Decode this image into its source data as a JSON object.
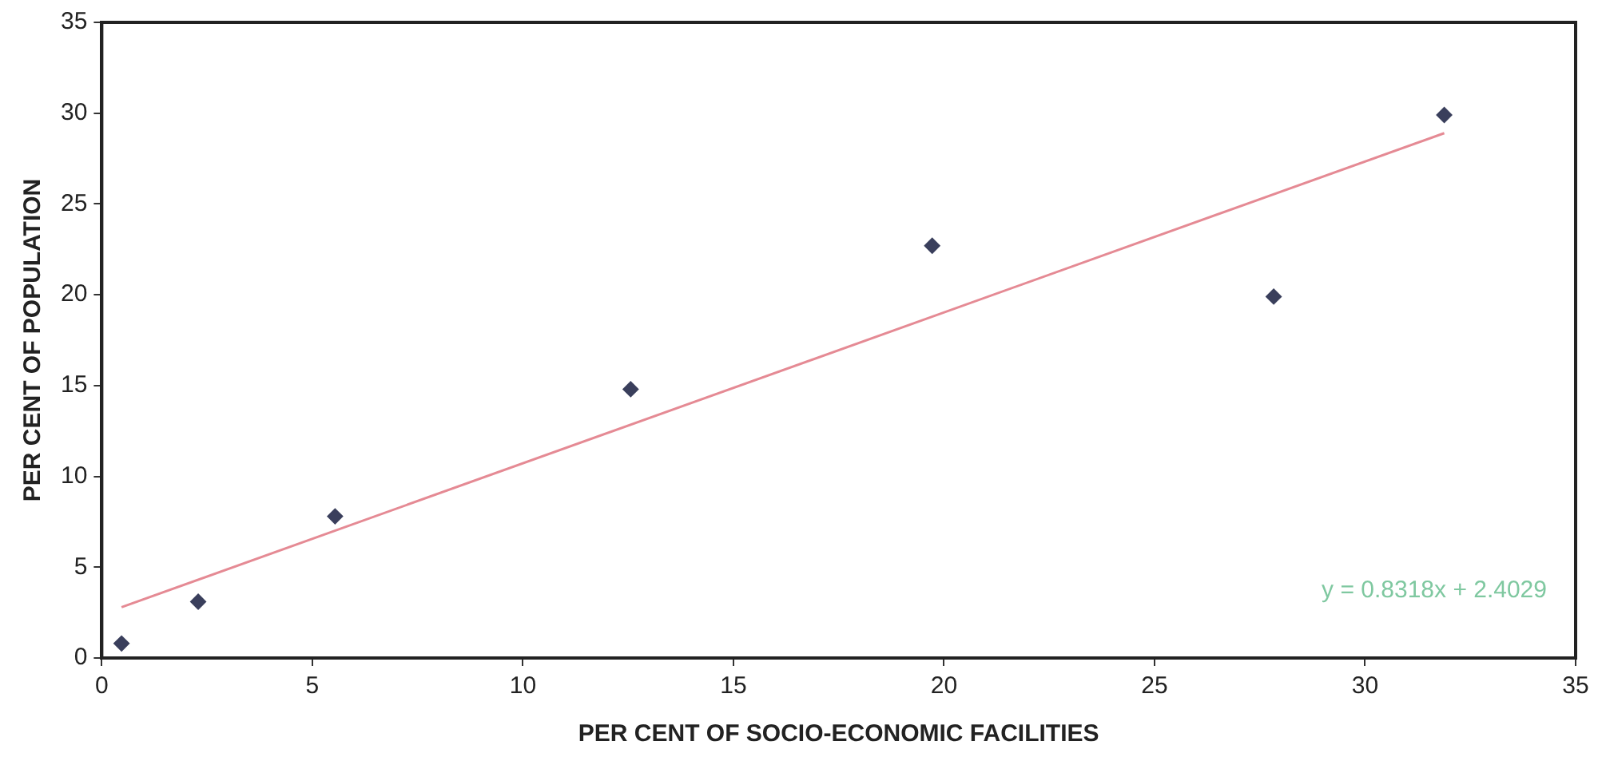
{
  "chart_data": {
    "type": "scatter",
    "xlabel": "PER CENT OF SOCIO-ECONOMIC FACILITIES",
    "ylabel": "PER CENT OF POPULATION",
    "xlim": [
      0,
      35
    ],
    "xticks": [
      0,
      5,
      10,
      15,
      20,
      25,
      30,
      35
    ],
    "ylim": [
      0,
      35
    ],
    "yticks": [
      0,
      5,
      10,
      15,
      20,
      25,
      30,
      35
    ],
    "grid": false,
    "legend": false,
    "series": [
      {
        "marker": "diamond",
        "color": "#3a3f5c",
        "x": [
          0.47,
          2.29,
          5.54,
          12.56,
          19.72,
          27.83,
          31.88
        ],
        "values": [
          0.8,
          3.1,
          7.8,
          14.8,
          22.7,
          19.9,
          29.9
        ]
      },
      {
        "type": "line",
        "marker": "none",
        "color": "#e58a94",
        "x": [
          0.47,
          31.88
        ],
        "values": [
          2.8,
          28.9
        ]
      }
    ],
    "annotations": [
      "y = 0.8318x + 2.4029"
    ]
  }
}
